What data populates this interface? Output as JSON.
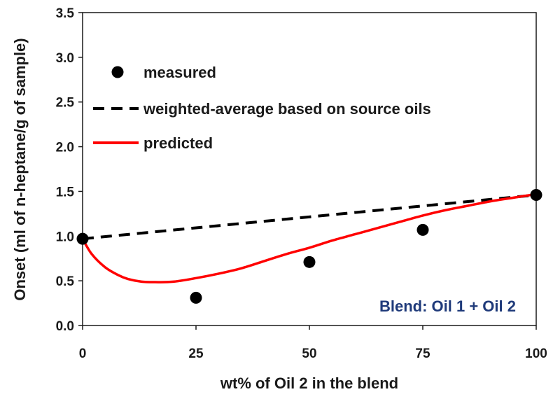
{
  "chart_data": {
    "type": "scatter",
    "title": "",
    "xlabel": "wt% of Oil 2 in the blend",
    "ylabel": "Onset (ml of n-heptane/g of sample)",
    "xlim": [
      0,
      100
    ],
    "ylim": [
      0,
      3.5
    ],
    "x_ticks": [
      0,
      25,
      50,
      75,
      100
    ],
    "y_ticks": [
      0.0,
      0.5,
      1.0,
      1.5,
      2.0,
      2.5,
      3.0,
      3.5
    ],
    "x_tick_labels": [
      "0",
      "25",
      "50",
      "75",
      "100"
    ],
    "y_tick_labels": [
      "0.0",
      "0.5",
      "1.0",
      "1.5",
      "2.0",
      "2.5",
      "3.0",
      "3.5"
    ],
    "grid": false,
    "legend_position": "top-left",
    "series": [
      {
        "name": "measured",
        "kind": "scatter",
        "color": "#000000",
        "x": [
          0,
          25,
          50,
          75,
          100
        ],
        "y": [
          0.97,
          0.31,
          0.71,
          1.07,
          1.46
        ]
      },
      {
        "name": "weighted-average based on source oils",
        "kind": "dashed-line",
        "color": "#000000",
        "x": [
          0,
          100
        ],
        "y": [
          0.97,
          1.46
        ]
      },
      {
        "name": "predicted",
        "kind": "line",
        "color": "#ff0000",
        "x": [
          0,
          2,
          5,
          8,
          10,
          13,
          16,
          20,
          25,
          30,
          35,
          40,
          45,
          50,
          55,
          60,
          65,
          70,
          75,
          80,
          85,
          90,
          95,
          100
        ],
        "y": [
          0.97,
          0.8,
          0.65,
          0.56,
          0.52,
          0.49,
          0.485,
          0.49,
          0.53,
          0.58,
          0.64,
          0.72,
          0.8,
          0.87,
          0.95,
          1.02,
          1.09,
          1.16,
          1.23,
          1.29,
          1.34,
          1.39,
          1.43,
          1.47
        ]
      }
    ],
    "annotation": {
      "text": "Blend: Oil 1 + Oil 2",
      "color": "#1f3a7a"
    }
  }
}
